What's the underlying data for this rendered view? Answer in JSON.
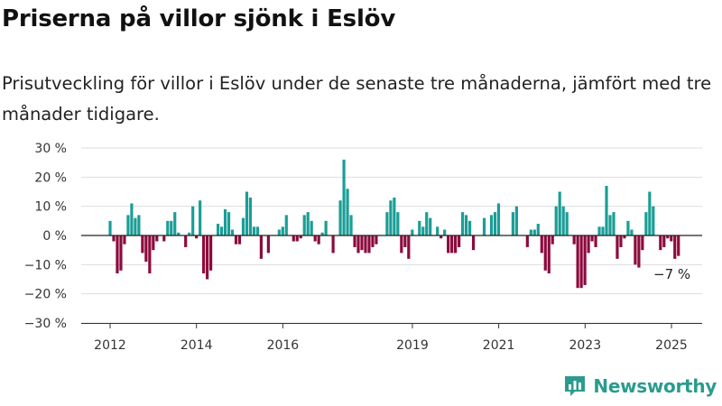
{
  "title": "Priserna på villor sjönk i Eslöv",
  "subtitle": "Prisutveckling för villor i Eslöv under de senaste tre månaderna, jämfört med tre månader tidigare.",
  "annotation": "−7 %",
  "brand": "Newsworthy",
  "colors": {
    "positive": "#1a9e96",
    "negative": "#8c0a3d",
    "grid": "#dddddd",
    "zero": "#222222",
    "brand": "#2a9b8f"
  },
  "chart_data": {
    "type": "bar",
    "xlabel": "",
    "ylabel": "",
    "ylim": [
      -30,
      30
    ],
    "grid": true,
    "y_ticks": [
      {
        "v": 30,
        "label": "30 %"
      },
      {
        "v": 20,
        "label": "20 %"
      },
      {
        "v": 10,
        "label": "10 %"
      },
      {
        "v": 0,
        "label": "0 %"
      },
      {
        "v": -10,
        "label": "−10 %"
      },
      {
        "v": -20,
        "label": "−20 %"
      },
      {
        "v": -30,
        "label": "−30 %"
      }
    ],
    "x_ticks": [
      {
        "x": 2012,
        "label": "2012"
      },
      {
        "x": 2014,
        "label": "2014"
      },
      {
        "x": 2016,
        "label": "2016"
      },
      {
        "x": 2019,
        "label": "2019"
      },
      {
        "x": 2021,
        "label": "2021"
      },
      {
        "x": 2023,
        "label": "2023"
      },
      {
        "x": 2025,
        "label": "2025"
      }
    ],
    "x_start": 2012.0,
    "x_step": 0.0833,
    "values": [
      5,
      -2,
      -13,
      -12,
      -3,
      7,
      11,
      6,
      7,
      -6,
      -9,
      -13,
      -5,
      -2,
      0,
      -2,
      5,
      5,
      8,
      1,
      0,
      -4,
      1,
      10,
      -1,
      12,
      -13,
      -15,
      -12,
      0,
      4,
      3,
      9,
      8,
      2,
      -3,
      -3,
      6,
      15,
      13,
      3,
      3,
      -8,
      0,
      -6,
      0,
      0,
      2,
      3,
      7,
      0,
      -2,
      -2,
      -1,
      7,
      8,
      5,
      -2,
      -3,
      1,
      5,
      0,
      -6,
      0,
      12,
      26,
      16,
      7,
      -4,
      -6,
      -5,
      -6,
      -6,
      -4,
      -3,
      0,
      0,
      8,
      12,
      13,
      8,
      -6,
      -4,
      -8,
      2,
      0,
      5,
      3,
      8,
      6,
      0,
      3,
      -1,
      2,
      -6,
      -6,
      -6,
      -4,
      8,
      7,
      5,
      -5,
      0,
      0,
      6,
      0,
      7,
      8,
      11,
      0,
      0,
      0,
      8,
      10,
      0,
      0,
      -4,
      2,
      2,
      4,
      -6,
      -12,
      -13,
      -3,
      10,
      15,
      10,
      8,
      0,
      -3,
      -18,
      -18,
      -17,
      -6,
      -2,
      -4,
      3,
      3,
      17,
      7,
      8,
      -8,
      -4,
      -1,
      5,
      2,
      -10,
      -11,
      -5,
      8,
      15,
      10,
      0,
      -5,
      -4,
      -1,
      -2,
      -8,
      -7
    ]
  }
}
